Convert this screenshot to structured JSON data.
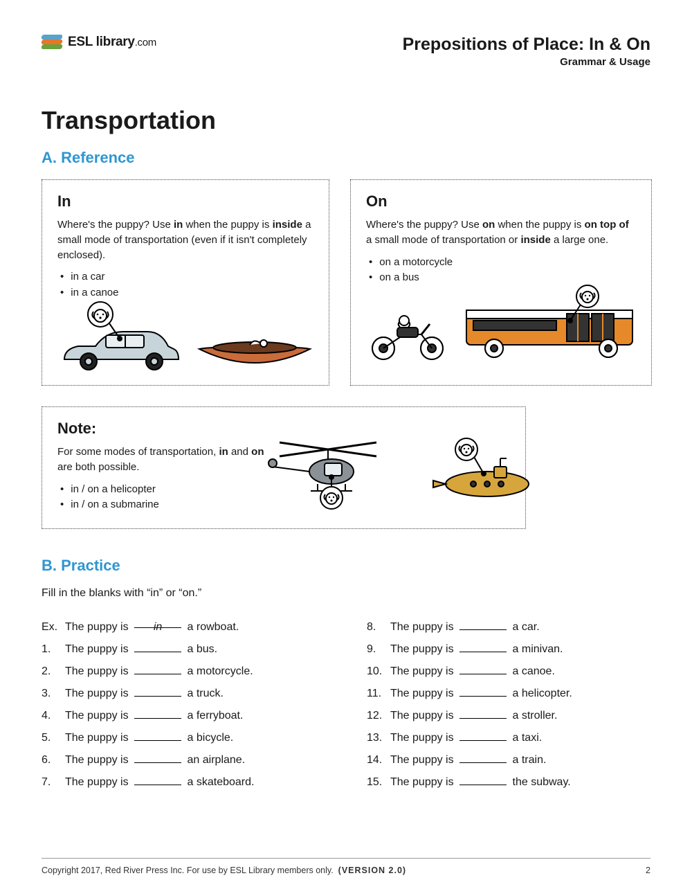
{
  "colors": {
    "accent": "#2f96d1",
    "text": "#1a1a1a",
    "bus": "#e6892a",
    "car": "#c7d4da",
    "canoe": "#c96b3a",
    "sub": "#d6a63d",
    "grey": "#8b9297",
    "logo1": "#5aa2c8",
    "logo2": "#e6762a",
    "logo3": "#6aa23c"
  },
  "header": {
    "logo_bold": "ESL library",
    "logo_thin": ".com",
    "title": "Prepositions of Place: In & On",
    "subtitle": "Grammar & Usage"
  },
  "title": "Transportation",
  "sectA": {
    "heading": "A. Reference",
    "in": {
      "title": "In",
      "text_parts": [
        "Where's the puppy? Use ",
        "in",
        " when the puppy is ",
        "inside",
        " a small mode of transportation (even if it isn't completely enclosed)."
      ],
      "bullets": [
        "in a car",
        "in a canoe"
      ]
    },
    "on": {
      "title": "On",
      "text_parts": [
        "Where's the puppy? Use ",
        "on",
        " when the puppy is ",
        "on top of",
        " a small mode of transportation or ",
        "inside",
        " a large one."
      ],
      "bullets": [
        "on a motorcycle",
        "on a bus"
      ]
    },
    "note": {
      "title": "Note:",
      "text_parts": [
        "For some modes of transportation, ",
        "in",
        " and ",
        "on",
        " are both possible."
      ],
      "bullets": [
        "in / on a helicopter",
        "in / on a submarine"
      ]
    }
  },
  "sectB": {
    "heading": "B. Practice",
    "instruction": "Fill in the blanks with “in” or “on.”",
    "stem_a": "The puppy is",
    "example": {
      "num": "Ex.",
      "answer": "in",
      "tail": "a rowboat."
    },
    "left": [
      {
        "num": "1.",
        "tail": "a bus."
      },
      {
        "num": "2.",
        "tail": "a motorcycle."
      },
      {
        "num": "3.",
        "tail": "a truck."
      },
      {
        "num": "4.",
        "tail": "a ferryboat."
      },
      {
        "num": "5.",
        "tail": "a bicycle."
      },
      {
        "num": "6.",
        "tail": "an airplane."
      },
      {
        "num": "7.",
        "tail": "a skateboard."
      }
    ],
    "right": [
      {
        "num": "8.",
        "tail": "a car."
      },
      {
        "num": "9.",
        "tail": "a minivan."
      },
      {
        "num": "10.",
        "tail": "a canoe."
      },
      {
        "num": "11.",
        "tail": "a helicopter."
      },
      {
        "num": "12.",
        "tail": "a stroller."
      },
      {
        "num": "13.",
        "tail": "a taxi."
      },
      {
        "num": "14.",
        "tail": "a train."
      },
      {
        "num": "15.",
        "tail": "the subway."
      }
    ]
  },
  "footer": {
    "copyright": "Copyright 2017, Red River Press Inc. For use by ESL Library members only.",
    "version_label": "(VERSION 2.0)",
    "page": "2"
  }
}
